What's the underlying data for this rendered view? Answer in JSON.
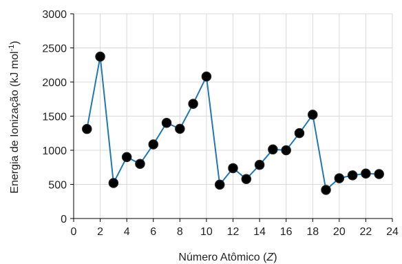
{
  "chart_data": {
    "type": "line",
    "xlabel_prefix": "Número Atômico (",
    "xlabel_var": "Z",
    "xlabel_suffix": ")",
    "ylabel_main": "Energia de Ionização (kJ mol",
    "ylabel_sup": "-1",
    "ylabel_end": ")",
    "xlim": [
      0,
      24
    ],
    "ylim": [
      0,
      3000
    ],
    "xticks": [
      0,
      2,
      4,
      6,
      8,
      10,
      12,
      14,
      16,
      18,
      20,
      22,
      24
    ],
    "yticks": [
      0,
      500,
      1000,
      1500,
      2000,
      2500,
      3000
    ],
    "grid": true,
    "line_color": "#1f77b4",
    "marker_color": "#000000",
    "series": [
      {
        "x": [
          1,
          2,
          3,
          4,
          5,
          6,
          7,
          8,
          9,
          10,
          11,
          12,
          13,
          14,
          15,
          16,
          17,
          18,
          19,
          20,
          21,
          22,
          23
        ],
        "values": [
          1312,
          2372,
          520,
          900,
          801,
          1086,
          1402,
          1314,
          1681,
          2081,
          496,
          738,
          578,
          786,
          1012,
          1000,
          1251,
          1521,
          419,
          590,
          633,
          659,
          651
        ]
      }
    ]
  }
}
